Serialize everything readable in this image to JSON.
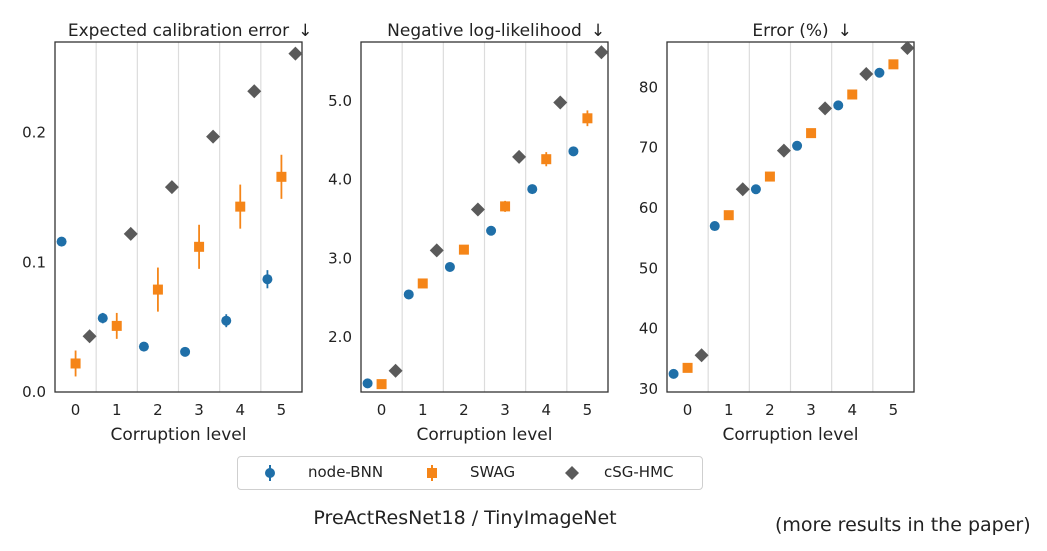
{
  "caption": "PreActResNet18 / TinyImageNet",
  "note": "(more results in the paper)",
  "legend": [
    {
      "name": "node-BNN",
      "color": "#1f6fa8",
      "marker": "circle"
    },
    {
      "name": "SWAG",
      "color": "#f58518",
      "marker": "square"
    },
    {
      "name": "cSG-HMC",
      "color": "#5a5a5a",
      "marker": "diamond"
    }
  ],
  "chart_data": [
    {
      "type": "scatter",
      "title": "Expected calibration error",
      "direction": "↓",
      "xlabel": "Corruption level",
      "ylabel": "",
      "categories": [
        "0",
        "1",
        "2",
        "3",
        "4",
        "5"
      ],
      "ylim": [
        0,
        0.27
      ],
      "yticks": [
        0.0,
        0.1,
        0.2
      ],
      "ytick_labels": [
        "0.0",
        "0.1",
        "0.2"
      ],
      "grid": "vertical",
      "series": [
        {
          "name": "node-BNN",
          "values": [
            0.116,
            0.057,
            0.035,
            0.031,
            0.055,
            0.087
          ],
          "errors": [
            0.002,
            0.004,
            0.002,
            0.002,
            0.005,
            0.007
          ]
        },
        {
          "name": "SWAG",
          "values": [
            0.022,
            0.051,
            0.079,
            0.112,
            0.143,
            0.166
          ],
          "errors": [
            0.01,
            0.01,
            0.017,
            0.017,
            0.017,
            0.017
          ]
        },
        {
          "name": "cSG-HMC",
          "values": [
            0.043,
            0.122,
            0.158,
            0.197,
            0.232,
            0.261
          ],
          "errors": [
            0.001,
            0.001,
            0.001,
            0.001,
            0.001,
            0.002
          ]
        }
      ]
    },
    {
      "type": "scatter",
      "title": "Negative log-likelihood",
      "direction": "↓",
      "xlabel": "Corruption level",
      "ylabel": "",
      "categories": [
        "0",
        "1",
        "2",
        "3",
        "4",
        "5"
      ],
      "ylim": [
        1.3,
        5.75
      ],
      "yticks": [
        2.0,
        3.0,
        4.0,
        5.0
      ],
      "ytick_labels": [
        "2.0",
        "3.0",
        "4.0",
        "5.0"
      ],
      "grid": "vertical",
      "series": [
        {
          "name": "node-BNN",
          "values": [
            1.41,
            2.54,
            2.89,
            3.35,
            3.88,
            4.36
          ],
          "errors": [
            0.01,
            0.01,
            0.01,
            0.02,
            0.02,
            0.02
          ]
        },
        {
          "name": "SWAG",
          "values": [
            1.4,
            2.68,
            3.11,
            3.66,
            4.26,
            4.78
          ],
          "errors": [
            0.01,
            0.03,
            0.05,
            0.07,
            0.09,
            0.1
          ]
        },
        {
          "name": "cSG-HMC",
          "values": [
            1.57,
            3.1,
            3.62,
            4.29,
            4.98,
            5.62
          ],
          "errors": [
            0.01,
            0.01,
            0.01,
            0.01,
            0.01,
            0.01
          ]
        }
      ]
    },
    {
      "type": "scatter",
      "title": "Error (%)",
      "direction": "↓",
      "xlabel": "Corruption level",
      "ylabel": "",
      "categories": [
        "0",
        "1",
        "2",
        "3",
        "4",
        "5"
      ],
      "ylim": [
        29.5,
        87.5
      ],
      "yticks": [
        30,
        40,
        50,
        60,
        70,
        80
      ],
      "ytick_labels": [
        "30",
        "40",
        "50",
        "60",
        "70",
        "80"
      ],
      "grid": "vertical",
      "series": [
        {
          "name": "node-BNN",
          "values": [
            32.5,
            57.0,
            63.1,
            70.3,
            77.0,
            82.4
          ],
          "errors": [
            0.1,
            0.1,
            0.1,
            0.1,
            0.1,
            0.1
          ]
        },
        {
          "name": "SWAG",
          "values": [
            33.5,
            58.8,
            65.2,
            72.4,
            78.8,
            83.8
          ],
          "errors": [
            0.2,
            0.3,
            0.3,
            0.3,
            0.3,
            0.3
          ]
        },
        {
          "name": "cSG-HMC",
          "values": [
            35.6,
            63.1,
            69.5,
            76.5,
            82.2,
            86.5
          ],
          "errors": [
            0.1,
            0.1,
            0.1,
            0.1,
            0.1,
            0.1
          ]
        }
      ]
    }
  ]
}
